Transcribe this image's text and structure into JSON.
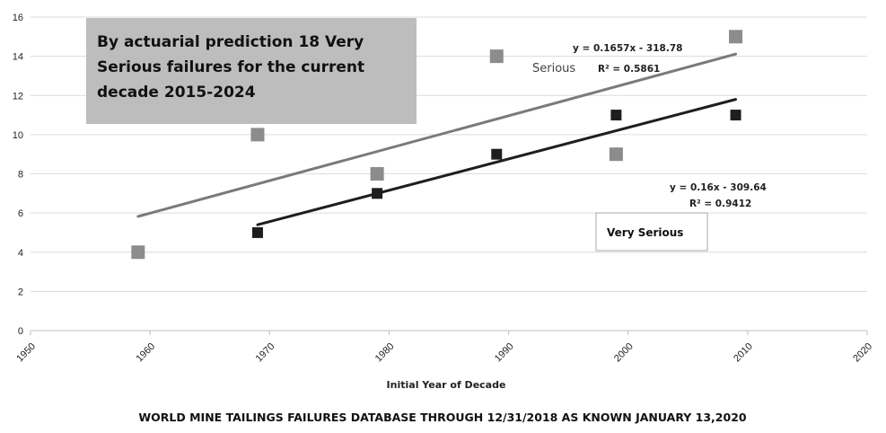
{
  "chart_data": {
    "type": "scatter",
    "xlabel": "Initial Year of Decade",
    "title": "WORLD MINE TAILINGS FAILURES DATABASE THROUGH 12/31/2018 AS KNOWN JANUARY 13,2020",
    "xlim": [
      1950,
      2020
    ],
    "ylim": [
      0,
      16
    ],
    "x_ticks": [
      "1950",
      "1960",
      "1970",
      "1980",
      "1990",
      "2000",
      "2010",
      "2020"
    ],
    "y_ticks": [
      "0",
      "2",
      "4",
      "6",
      "8",
      "10",
      "12",
      "14",
      "16"
    ],
    "grid": true,
    "series": [
      {
        "name": "Serious",
        "color": "#8c8c8c",
        "points": [
          [
            1959,
            4
          ],
          [
            1969,
            10
          ],
          [
            1979,
            8
          ],
          [
            1989,
            14
          ],
          [
            1999,
            9
          ],
          [
            2009,
            15
          ]
        ],
        "trendline": {
          "slope": 0.1657,
          "intercept": -318.78,
          "x_range": [
            1959,
            2009
          ],
          "equation": "y = 0.1657x - 318.78",
          "r2": "R² = 0.5861",
          "color": "#7a7a7a"
        }
      },
      {
        "name": "Very Serious",
        "color": "#1e1e1e",
        "points": [
          [
            1969,
            5
          ],
          [
            1979,
            7
          ],
          [
            1989,
            9
          ],
          [
            1999,
            11
          ],
          [
            2009,
            11
          ]
        ],
        "trendline": {
          "slope": 0.16,
          "intercept": -309.64,
          "x_range": [
            1969,
            2009
          ],
          "equation": "y = 0.16x - 309.64",
          "r2": "R² = 0.9412",
          "color": "#1e1e1e"
        }
      }
    ],
    "annotations": {
      "callout_lines": [
        "By actuarial prediction 18 Very",
        "Serious failures for the current",
        "decade 2015-2024"
      ],
      "serious_label": "Serious",
      "very_serious_label": "Very Serious"
    }
  }
}
